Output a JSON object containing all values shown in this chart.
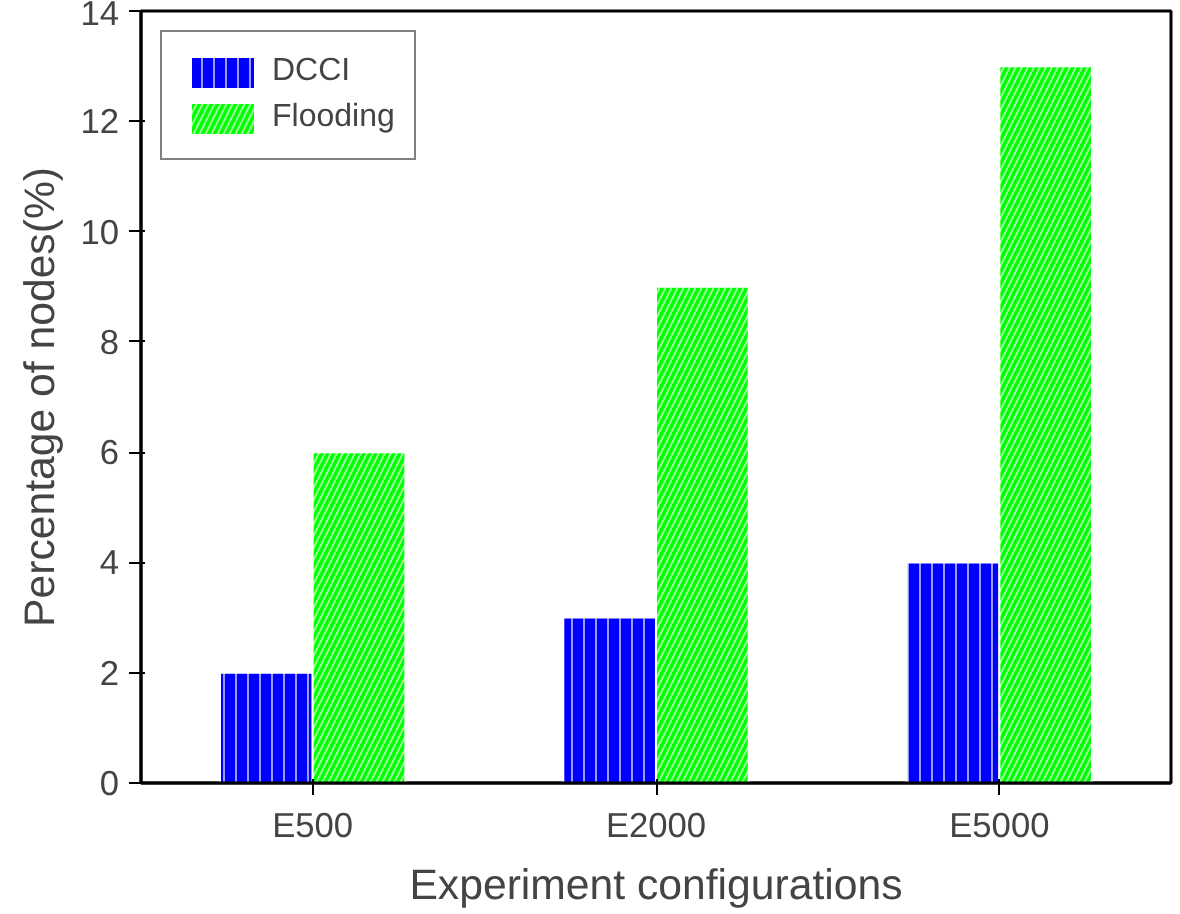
{
  "chart_data": {
    "type": "bar",
    "xlabel": "Experiment configurations",
    "ylabel": "Percentage of nodes(%)",
    "categories": [
      "E500",
      "E2000",
      "E5000"
    ],
    "series": [
      {
        "name": "DCCI",
        "color": "#0000ff",
        "values": [
          2,
          3,
          4
        ]
      },
      {
        "name": "Flooding",
        "color": "#00ff00",
        "values": [
          6,
          9,
          13
        ]
      }
    ],
    "ylim": [
      0,
      14
    ],
    "yticks": [
      0,
      2,
      4,
      6,
      8,
      10,
      12,
      14
    ],
    "legend": "top left",
    "grid": false
  }
}
